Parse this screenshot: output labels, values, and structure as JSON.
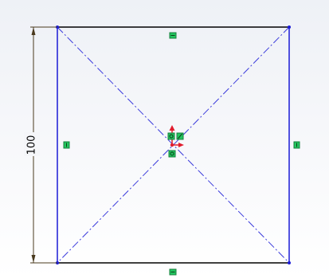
{
  "sketch": {
    "dimension_value": "100",
    "colors": {
      "edge": "#1a1ad6",
      "defined_edge": "#000000",
      "construction": "#3b3bdc",
      "dimension": "#4a3a1e",
      "relation_marker": "#22c55e",
      "relation_marker_border": "#15803d",
      "origin_arrow": "#e11d2e",
      "background_top": "#eef1f6",
      "background_bottom": "#ffffff"
    },
    "icons": [
      "horizontal-relation-icon",
      "vertical-relation-icon",
      "origin-icon",
      "coincident-relation-icon",
      "midpoint-relation-icon"
    ]
  }
}
